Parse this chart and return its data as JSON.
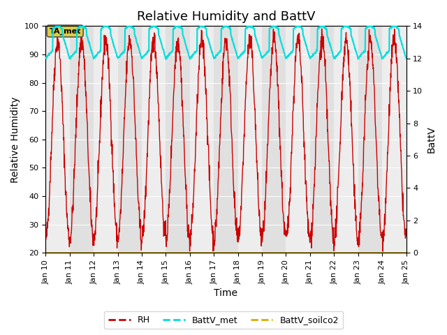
{
  "title": "Relative Humidity and BattV",
  "xlabel": "Time",
  "ylabel_left": "Relative Humidity",
  "ylabel_right": "BattV",
  "ylim_left": [
    20,
    100
  ],
  "ylim_right": [
    0,
    14
  ],
  "x_start_day": 10,
  "x_end_day": 25,
  "x_ticks": [
    10,
    11,
    12,
    13,
    14,
    15,
    16,
    17,
    18,
    19,
    20,
    21,
    22,
    23,
    24,
    25
  ],
  "x_tick_labels": [
    "Jan 10",
    "Jan 11",
    "Jan 12",
    "Jan 13",
    "Jan 14",
    "Jan 15",
    "Jan 16",
    "Jan 17",
    "Jan 18",
    "Jan 19",
    "Jan 20",
    "Jan 21",
    "Jan 22",
    "Jan 23",
    "Jan 24",
    "Jan 25"
  ],
  "rh_color": "#cc0000",
  "battv_met_color": "#00dddd",
  "battv_soilco2_color": "#ddaa00",
  "background_color": "#ffffff",
  "plot_bg_color": "#e0e0e0",
  "annotation_label": "TA_met",
  "legend_entries": [
    "RH",
    "BattV_met",
    "BattV_soilco2"
  ],
  "title_fontsize": 13,
  "axis_label_fontsize": 10,
  "tick_fontsize": 8,
  "yticks_left": [
    20,
    30,
    40,
    50,
    60,
    70,
    80,
    90,
    100
  ],
  "yticks_right": [
    0,
    2,
    4,
    6,
    8,
    10,
    12,
    14
  ]
}
